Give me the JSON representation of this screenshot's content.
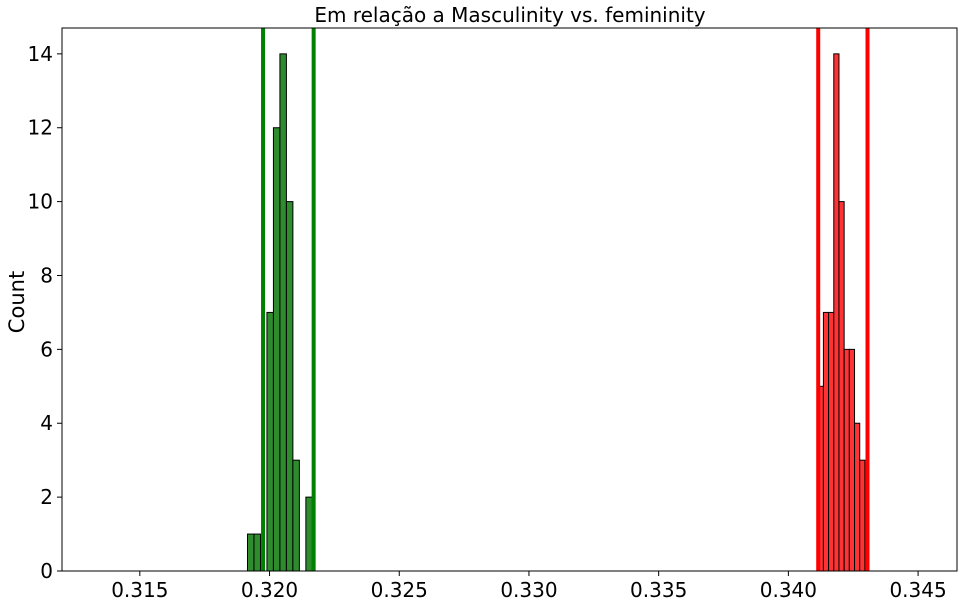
{
  "chart_data": {
    "type": "bar",
    "title": "Em relação a Masculinity vs. femininity",
    "xlabel": "",
    "ylabel": "Count",
    "xlim": [
      0.312,
      0.3465
    ],
    "ylim": [
      0,
      14.7
    ],
    "x_ticks": [
      0.315,
      0.32,
      0.325,
      0.33,
      0.335,
      0.34,
      0.345
    ],
    "x_tick_labels": [
      "0.315",
      "0.320",
      "0.325",
      "0.330",
      "0.335",
      "0.340",
      "0.345"
    ],
    "y_ticks": [
      0,
      2,
      4,
      6,
      8,
      10,
      12,
      14
    ],
    "y_tick_labels": [
      "0",
      "2",
      "4",
      "6",
      "8",
      "10",
      "12",
      "14"
    ],
    "grid": false,
    "series": [
      {
        "color": "#2e8b2e",
        "edge_color": "#000000",
        "bins": [
          {
            "x0": 0.31915,
            "x1": 0.3194,
            "count": 1
          },
          {
            "x0": 0.3194,
            "x1": 0.31965,
            "count": 1
          },
          {
            "x0": 0.31965,
            "x1": 0.3199,
            "count": 0
          },
          {
            "x0": 0.3199,
            "x1": 0.32015,
            "count": 7
          },
          {
            "x0": 0.32015,
            "x1": 0.3204,
            "count": 12
          },
          {
            "x0": 0.3204,
            "x1": 0.32065,
            "count": 14
          },
          {
            "x0": 0.32065,
            "x1": 0.3209,
            "count": 10
          },
          {
            "x0": 0.3209,
            "x1": 0.32115,
            "count": 3
          },
          {
            "x0": 0.32115,
            "x1": 0.3214,
            "count": 0
          },
          {
            "x0": 0.3214,
            "x1": 0.32165,
            "count": 2
          }
        ],
        "vlines": [
          0.31975,
          0.3217
        ],
        "vline_color": "#008000"
      },
      {
        "color": "#ff3333",
        "edge_color": "#000000",
        "bins": [
          {
            "x0": 0.34115,
            "x1": 0.34135,
            "count": 5
          },
          {
            "x0": 0.34135,
            "x1": 0.34155,
            "count": 7
          },
          {
            "x0": 0.34155,
            "x1": 0.34175,
            "count": 7
          },
          {
            "x0": 0.34175,
            "x1": 0.34195,
            "count": 14
          },
          {
            "x0": 0.34195,
            "x1": 0.34215,
            "count": 10
          },
          {
            "x0": 0.34215,
            "x1": 0.34235,
            "count": 6
          },
          {
            "x0": 0.34235,
            "x1": 0.34255,
            "count": 6
          },
          {
            "x0": 0.34255,
            "x1": 0.34275,
            "count": 4
          },
          {
            "x0": 0.34275,
            "x1": 0.34295,
            "count": 3
          }
        ],
        "vlines": [
          0.34115,
          0.34305
        ],
        "vline_color": "#ff0000"
      }
    ]
  }
}
